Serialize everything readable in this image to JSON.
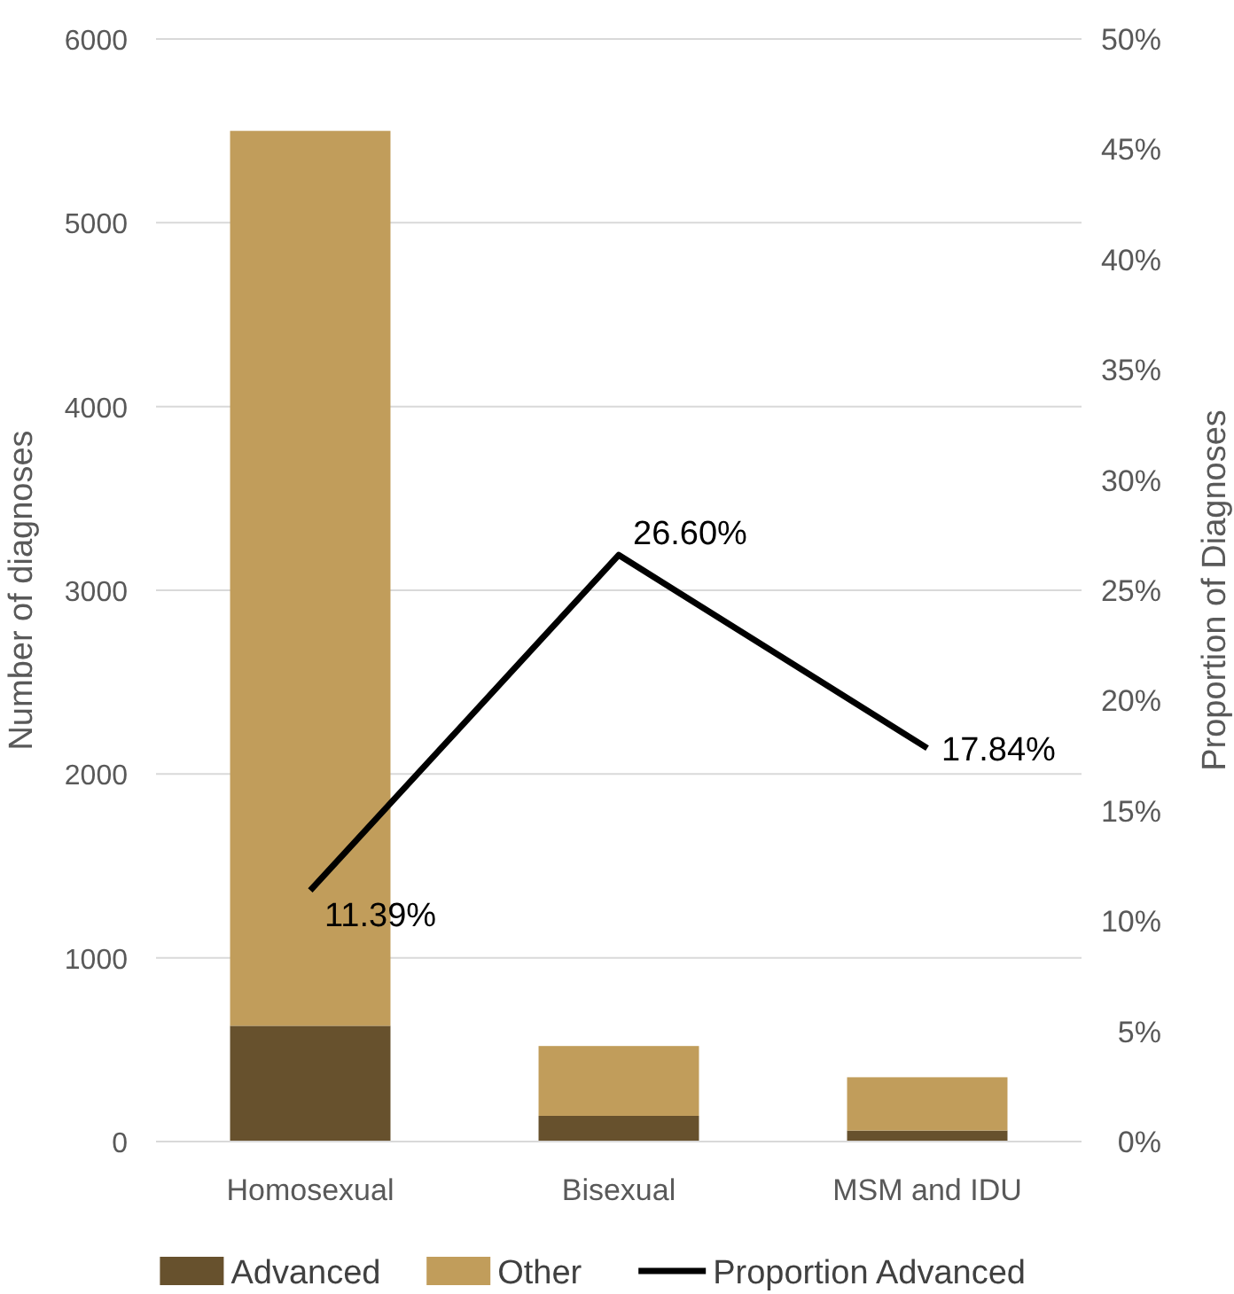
{
  "chart_data": {
    "type": "bar",
    "stacked": true,
    "categories": [
      "Homosexual",
      "Bisexual",
      "MSM and IDU"
    ],
    "series": [
      {
        "name": "Advanced",
        "color": "#67512d",
        "values": [
          630,
          140,
          60
        ]
      },
      {
        "name": "Other",
        "color": "#c19d5b",
        "values": [
          4870,
          380,
          290
        ]
      },
      {
        "name": "Proportion Advanced",
        "type": "line",
        "axis": "y2",
        "color": "#000000",
        "values": [
          11.39,
          26.6,
          17.84
        ],
        "value_labels": [
          "11.39%",
          "26.60%",
          "17.84%"
        ]
      }
    ],
    "ylabel": "Number of diagnoses",
    "y2label": "Proportion of Diagnoses",
    "ylim": [
      0,
      6000
    ],
    "yticks": [
      0,
      1000,
      2000,
      3000,
      4000,
      5000,
      6000
    ],
    "y2lim": [
      0,
      50
    ],
    "y2ticks": [
      {
        "value": 0,
        "label": "0%"
      },
      {
        "value": 5,
        "label": "5%"
      },
      {
        "value": 10,
        "label": "10%"
      },
      {
        "value": 15,
        "label": "15%"
      },
      {
        "value": 20,
        "label": "20%"
      },
      {
        "value": 25,
        "label": "25%"
      },
      {
        "value": 30,
        "label": "30%"
      },
      {
        "value": 35,
        "label": "35%"
      },
      {
        "value": 40,
        "label": "40%"
      },
      {
        "value": 45,
        "label": "45%"
      },
      {
        "value": 50,
        "label": "50%"
      }
    ],
    "grid": "y",
    "legend": "bottom"
  }
}
